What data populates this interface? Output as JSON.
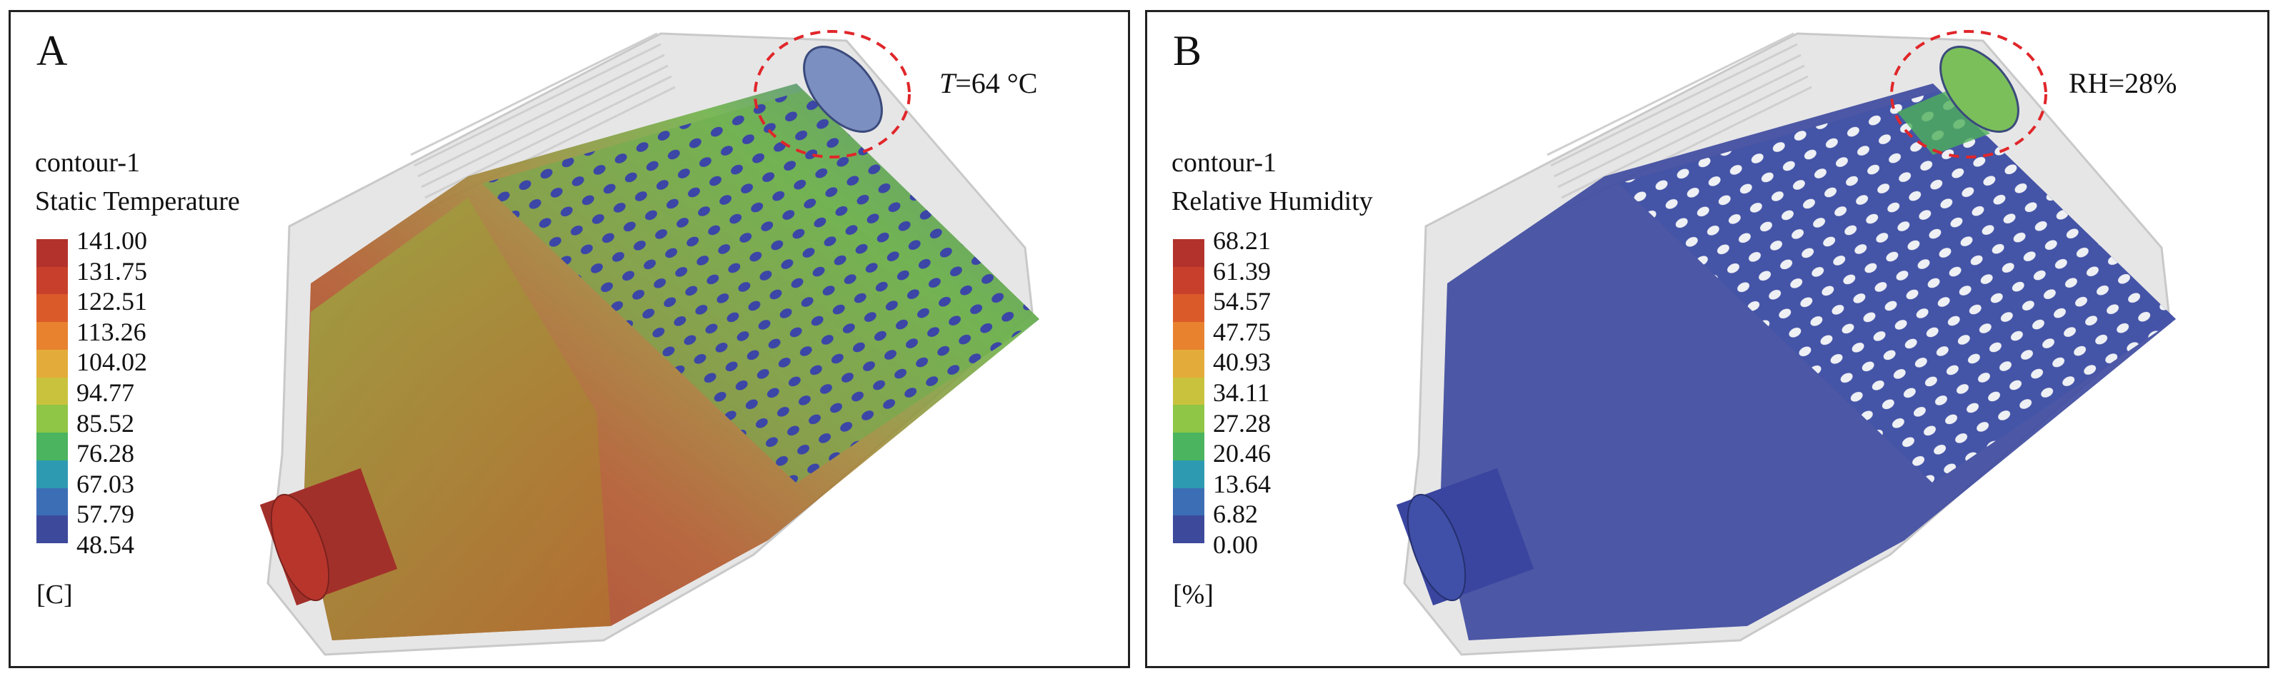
{
  "panels": [
    {
      "label": "A",
      "annotation_var": "T",
      "annotation_rest": "=64 °C",
      "legend": {
        "name": "contour-1",
        "quantity": "Static Temperature",
        "unit": "[C]",
        "ticks": [
          "141.00",
          "131.75",
          "122.51",
          "113.26",
          "104.02",
          "94.77",
          "85.52",
          "76.28",
          "67.03",
          "57.79",
          "48.54"
        ],
        "colors": [
          "#b3322c",
          "#c8402b",
          "#db5a2a",
          "#e8822e",
          "#e3ac3a",
          "#c9c23d",
          "#8fc646",
          "#4bb45e",
          "#2e9ab2",
          "#3c6eb5",
          "#3d4a9c"
        ]
      }
    },
    {
      "label": "B",
      "annotation_var": "",
      "annotation_rest": "RH=28%",
      "legend": {
        "name": "contour-1",
        "quantity": "Relative Humidity",
        "unit": "[%]",
        "ticks": [
          "68.21",
          "61.39",
          "54.57",
          "47.75",
          "40.93",
          "34.11",
          "27.28",
          "20.46",
          "13.64",
          "6.82",
          "0.00"
        ],
        "colors": [
          "#b3322c",
          "#c8402b",
          "#db5a2a",
          "#e8822e",
          "#e3ac3a",
          "#c9c23d",
          "#8fc646",
          "#4bb45e",
          "#2e9ab2",
          "#3c6eb5",
          "#3d4a9c"
        ]
      }
    }
  ],
  "colors": {
    "highlight_circle": "#e0262a",
    "hot_fill": "#a8402b",
    "mid_fill": "#8f9a3e",
    "cool_fill": "#3d4a9c",
    "hole_fill": "#3b46a6",
    "housing": "#d9d9d9"
  }
}
